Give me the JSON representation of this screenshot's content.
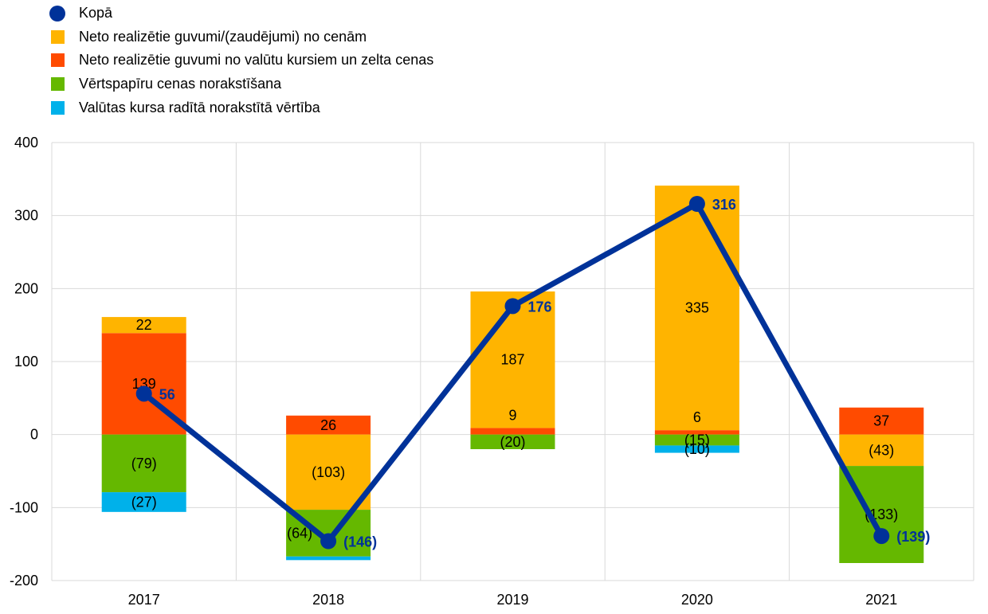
{
  "chart_data": {
    "type": "bar",
    "stacked": true,
    "categories": [
      "2017",
      "2018",
      "2019",
      "2020",
      "2021"
    ],
    "ylim": [
      -200,
      400
    ],
    "yticks": [
      -200,
      -100,
      0,
      100,
      200,
      300,
      400
    ],
    "grid": true,
    "legend_position": "top-left",
    "series": [
      {
        "name": "Neto realizētie guvumi/(zaudējumi) no cenām",
        "color": "#FFB400",
        "values": [
          22,
          -103,
          187,
          335,
          -43
        ],
        "labels": [
          "22",
          "(103)",
          "187",
          "335",
          "(43)"
        ]
      },
      {
        "name": "Neto realizētie guvumi no valūtu kursiem un zelta cenas",
        "color": "#FF4B00",
        "values": [
          139,
          26,
          9,
          6,
          37
        ],
        "labels": [
          "139",
          "26",
          "9",
          "6",
          "37"
        ]
      },
      {
        "name": "Vērtspapīru cenas norakstīšana",
        "color": "#65B800",
        "values": [
          -79,
          -64,
          -20,
          -15,
          -133
        ],
        "labels": [
          "(79)",
          "(64)",
          "(20)",
          "(15)",
          "(133)"
        ]
      },
      {
        "name": "Valūtas kursa radītā norakstītā vērtība",
        "color": "#00B1EA",
        "values": [
          -27,
          -5,
          0,
          -10,
          0
        ],
        "labels": [
          "(27)",
          null,
          null,
          "(10)",
          null
        ]
      }
    ],
    "line": {
      "name": "Kopā",
      "color": "#003299",
      "values": [
        56,
        -146,
        176,
        316,
        -139
      ],
      "labels": [
        "56",
        "(146)",
        "176",
        "316",
        "(139)"
      ]
    }
  }
}
